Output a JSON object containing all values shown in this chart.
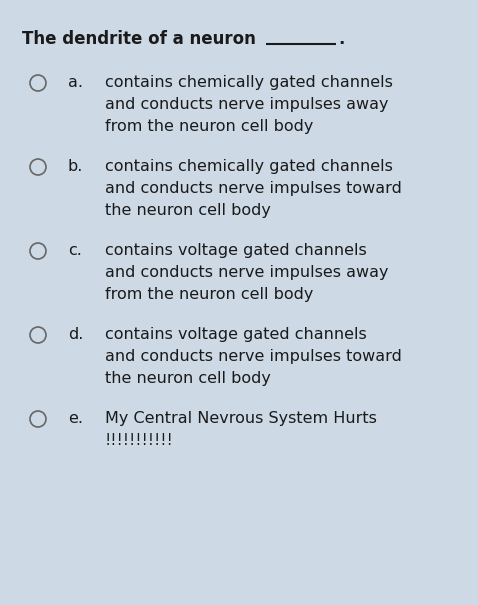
{
  "background_color": "#cdd9e5",
  "title_bold": "The dendrite of a neuron",
  "title_suffix": ".",
  "options": [
    {
      "label": "a.",
      "lines": [
        "contains chemically gated channels",
        "and conducts nerve impulses away",
        "from the neuron cell body"
      ]
    },
    {
      "label": "b.",
      "lines": [
        "contains chemically gated channels",
        "and conducts nerve impulses toward",
        "the neuron cell body"
      ]
    },
    {
      "label": "c.",
      "lines": [
        "contains voltage gated channels",
        "and conducts nerve impulses away",
        "from the neuron cell body"
      ]
    },
    {
      "label": "d.",
      "lines": [
        "contains voltage gated channels",
        "and conducts nerve impulses toward",
        "the neuron cell body"
      ]
    },
    {
      "label": "e.",
      "lines": [
        "My Central Nevrous System Hurts",
        "!!!!!!!!!!!"
      ]
    }
  ],
  "text_color": "#1a1a1a",
  "circle_edge_color": "#666666",
  "title_fontsize": 12.0,
  "option_fontsize": 11.5,
  "underline_color": "#1a1a1a"
}
